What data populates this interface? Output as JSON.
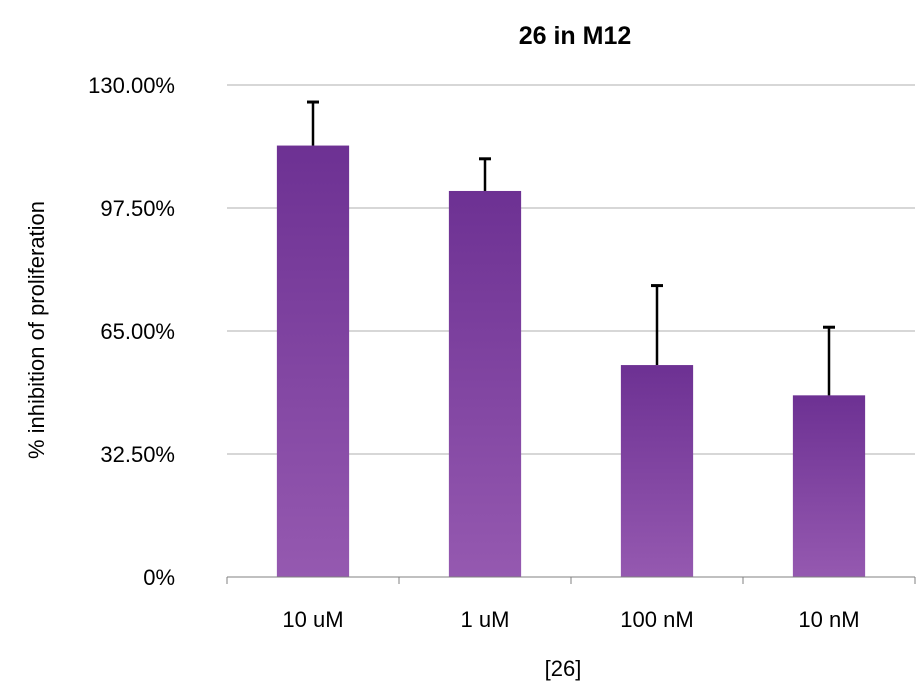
{
  "chart_data": {
    "type": "bar",
    "title": "26 in M12",
    "xlabel": "[26]",
    "ylabel": "% inhibition of proliferation",
    "categories": [
      "10 uM",
      "1 uM",
      "100 nM",
      "10 nM"
    ],
    "values": [
      114,
      102,
      56,
      48
    ],
    "error_upper": [
      11.5,
      8.5,
      21,
      18
    ],
    "ylim": [
      0,
      130
    ],
    "yticks": [
      0,
      32.5,
      65,
      97.5,
      130
    ],
    "ytick_labels": [
      "0%",
      "32.50%",
      "65.00%",
      "97.50%",
      "130.00%"
    ],
    "grid": true,
    "legend": "none",
    "colors": {
      "bar_top": "#6d3193",
      "bar_bottom": "#9559b0",
      "gridline": "#bfbfbf",
      "error_bar": "#000000"
    }
  }
}
